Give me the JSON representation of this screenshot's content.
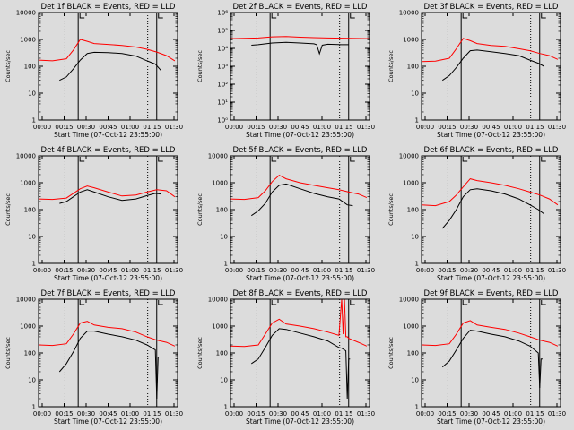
{
  "figure": {
    "background": "#dcdcdc",
    "colors": {
      "events": "#000000",
      "lld": "#ff0000",
      "frame": "#000000"
    }
  },
  "chart_data": [
    {
      "type": "line",
      "title": "Det 1f BLACK = Events, RED = LLD",
      "xlabel": "Start Time (07-Oct-12 23:55:00)",
      "ylabel": "Counts/sec",
      "yscale": "log",
      "ylim": [
        1,
        10000
      ],
      "ytick_labels": [
        "1",
        "10",
        "100",
        "1000",
        "10000"
      ],
      "xlim": [
        0,
        100
      ],
      "xtick_labels": [
        "00:00",
        "00:15",
        "00:30",
        "00:45",
        "01:00",
        "01:15",
        "01:30"
      ],
      "vlines_dotted": [
        19,
        78.5
      ],
      "vlines_solid": [
        28.5,
        85
      ],
      "series": [
        {
          "name": "LLD",
          "color": "#ff0000",
          "x": [
            0,
            10,
            20,
            25,
            30,
            35,
            40,
            50,
            60,
            70,
            78,
            85,
            92,
            98
          ],
          "y": [
            170,
            160,
            190,
            400,
            1000,
            850,
            700,
            650,
            600,
            520,
            430,
            340,
            250,
            160
          ]
        },
        {
          "name": "Events",
          "color": "#000000",
          "x": [
            15,
            20,
            25,
            30,
            35,
            40,
            50,
            60,
            70,
            78,
            84,
            88
          ],
          "y": [
            30,
            40,
            80,
            170,
            300,
            330,
            320,
            300,
            240,
            160,
            120,
            70
          ]
        }
      ]
    },
    {
      "type": "line",
      "title": "Det 2f BLACK = Events, RED = LLD",
      "xlabel": "Start Time (07-Oct-12 23:55:00)",
      "ylabel": "Counts/sec",
      "yscale": "log",
      "ylim": [
        1,
        1000000
      ],
      "ytick_labels": [
        "10⁰",
        "10¹",
        "10²",
        "10³",
        "10⁴",
        "10⁵",
        "10⁶"
      ],
      "xlim": [
        0,
        100
      ],
      "xtick_labels": [
        "00:00",
        "00:15",
        "00:30",
        "00:45",
        "01:00",
        "01:15",
        "01:30"
      ],
      "vlines_dotted": [
        19,
        78.5
      ],
      "vlines_solid": [
        28.5,
        85
      ],
      "series": [
        {
          "name": "LLD",
          "color": "#ff0000",
          "x": [
            0,
            20,
            30,
            40,
            50,
            60,
            70,
            80,
            90,
            100
          ],
          "y": [
            35000,
            38000,
            44000,
            46000,
            42000,
            40000,
            38000,
            37000,
            36000,
            35000
          ]
        },
        {
          "name": "Events",
          "color": "#000000",
          "x": [
            15,
            20,
            30,
            40,
            50,
            60,
            62,
            64,
            66,
            70,
            80,
            85
          ],
          "y": [
            15000,
            16000,
            20000,
            22000,
            20000,
            18000,
            16000,
            5000,
            15000,
            17000,
            16000,
            16000
          ]
        }
      ]
    },
    {
      "type": "line",
      "title": "Det 3f BLACK = Events, RED = LLD",
      "xlabel": "Start Time (07-Oct-12 23:55:00)",
      "ylabel": "Counts/sec",
      "yscale": "log",
      "ylim": [
        1,
        10000
      ],
      "ytick_labels": [
        "1",
        "10",
        "100",
        "1000",
        "10000"
      ],
      "xlim": [
        0,
        100
      ],
      "xtick_labels": [
        "00:00",
        "00:15",
        "00:30",
        "00:45",
        "01:00",
        "01:15",
        "01:30"
      ],
      "vlines_dotted": [
        19,
        78.5
      ],
      "vlines_solid": [
        28.5,
        85
      ],
      "series": [
        {
          "name": "LLD",
          "color": "#ff0000",
          "x": [
            0,
            10,
            20,
            25,
            30,
            35,
            40,
            50,
            60,
            70,
            78,
            85,
            92,
            98
          ],
          "y": [
            150,
            155,
            200,
            450,
            1100,
            900,
            700,
            600,
            550,
            450,
            380,
            300,
            250,
            180
          ]
        },
        {
          "name": "Events",
          "color": "#000000",
          "x": [
            15,
            20,
            25,
            30,
            35,
            40,
            50,
            60,
            70,
            78,
            84,
            88
          ],
          "y": [
            30,
            45,
            90,
            200,
            380,
            400,
            350,
            300,
            250,
            170,
            130,
            100
          ]
        }
      ]
    },
    {
      "type": "line",
      "title": "Det 4f BLACK = Events, RED = LLD",
      "xlabel": "Start Time (07-Oct-12 23:55:00)",
      "ylabel": "Counts/sec",
      "yscale": "log",
      "ylim": [
        1,
        10000
      ],
      "ytick_labels": [
        "1",
        "10",
        "100",
        "1000",
        "10000"
      ],
      "xlim": [
        0,
        100
      ],
      "xtick_labels": [
        "00:00",
        "00:15",
        "00:30",
        "00:45",
        "01:00",
        "01:15",
        "01:30"
      ],
      "vlines_dotted": [
        19,
        78.5
      ],
      "vlines_solid": [
        28.5,
        85
      ],
      "series": [
        {
          "name": "LLD",
          "color": "#ff0000",
          "x": [
            0,
            10,
            20,
            25,
            30,
            35,
            40,
            50,
            60,
            70,
            78,
            85,
            92,
            98
          ],
          "y": [
            250,
            240,
            270,
            400,
            600,
            750,
            650,
            450,
            320,
            350,
            450,
            550,
            500,
            300
          ]
        },
        {
          "name": "Events",
          "color": "#000000",
          "x": [
            15,
            20,
            25,
            30,
            35,
            40,
            50,
            60,
            70,
            78,
            84,
            88
          ],
          "y": [
            170,
            200,
            300,
            450,
            550,
            450,
            300,
            220,
            250,
            330,
            400,
            380
          ]
        }
      ]
    },
    {
      "type": "line",
      "title": "Det 5f BLACK = Events, RED = LLD",
      "xlabel": "Start Time (07-Oct-12 23:55:00)",
      "ylabel": "Counts/sec",
      "yscale": "log",
      "ylim": [
        1,
        10000
      ],
      "ytick_labels": [
        "1",
        "10",
        "100",
        "1000",
        "10000"
      ],
      "xlim": [
        0,
        100
      ],
      "xtick_labels": [
        "00:00",
        "00:15",
        "00:30",
        "00:45",
        "01:00",
        "01:15",
        "01:30"
      ],
      "vlines_dotted": [
        19,
        78.5
      ],
      "vlines_solid": [
        28.5,
        85
      ],
      "series": [
        {
          "name": "LLD",
          "color": "#ff0000",
          "x": [
            0,
            10,
            20,
            25,
            30,
            35,
            40,
            50,
            60,
            70,
            78,
            85,
            92,
            98
          ],
          "y": [
            250,
            240,
            280,
            500,
            1100,
            1900,
            1400,
            1000,
            800,
            650,
            550,
            450,
            380,
            280
          ]
        },
        {
          "name": "Events",
          "color": "#000000",
          "x": [
            15,
            20,
            25,
            30,
            35,
            40,
            50,
            60,
            70,
            78,
            84,
            88
          ],
          "y": [
            60,
            90,
            170,
            450,
            800,
            900,
            600,
            400,
            300,
            250,
            150,
            140
          ]
        }
      ]
    },
    {
      "type": "line",
      "title": "Det 6f BLACK = Events, RED = LLD",
      "xlabel": "Start Time (07-Oct-12 23:55:00)",
      "ylabel": "Counts/sec",
      "yscale": "log",
      "ylim": [
        1,
        10000
      ],
      "ytick_labels": [
        "1",
        "10",
        "100",
        "1000",
        "10000"
      ],
      "xlim": [
        0,
        100
      ],
      "xtick_labels": [
        "00:00",
        "00:15",
        "00:30",
        "00:45",
        "01:00",
        "01:15",
        "01:30"
      ],
      "vlines_dotted": [
        19,
        78.5
      ],
      "vlines_solid": [
        28.5,
        85
      ],
      "series": [
        {
          "name": "LLD",
          "color": "#ff0000",
          "x": [
            0,
            10,
            20,
            25,
            30,
            35,
            40,
            50,
            60,
            70,
            78,
            85,
            92,
            98
          ],
          "y": [
            150,
            140,
            200,
            350,
            700,
            1400,
            1200,
            1000,
            800,
            600,
            450,
            350,
            250,
            150
          ]
        },
        {
          "name": "Events",
          "color": "#000000",
          "x": [
            15,
            20,
            25,
            30,
            35,
            40,
            50,
            60,
            70,
            78,
            84,
            88
          ],
          "y": [
            20,
            40,
            100,
            300,
            550,
            600,
            500,
            380,
            250,
            150,
            100,
            70
          ]
        }
      ]
    },
    {
      "type": "line",
      "title": "Det 7f BLACK = Events, RED = LLD",
      "xlabel": "Start Time (07-Oct-12 23:55:00)",
      "ylabel": "Counts/sec",
      "yscale": "log",
      "ylim": [
        1,
        10000
      ],
      "ytick_labels": [
        "1",
        "10",
        "100",
        "1000",
        "10000"
      ],
      "xlim": [
        0,
        100
      ],
      "xtick_labels": [
        "00:00",
        "00:15",
        "00:30",
        "00:45",
        "01:00",
        "01:15",
        "01:30"
      ],
      "vlines_dotted": [
        19,
        78.5
      ],
      "vlines_solid": [
        28.5,
        85
      ],
      "series": [
        {
          "name": "LLD",
          "color": "#ff0000",
          "x": [
            0,
            10,
            20,
            25,
            30,
            35,
            40,
            50,
            60,
            70,
            78,
            85,
            92,
            98
          ],
          "y": [
            200,
            190,
            220,
            500,
            1300,
            1500,
            1100,
            900,
            800,
            600,
            400,
            300,
            250,
            180
          ]
        },
        {
          "name": "Events",
          "color": "#000000",
          "x": [
            15,
            20,
            25,
            30,
            35,
            40,
            50,
            60,
            70,
            78,
            84,
            85,
            86,
            86.5
          ],
          "y": [
            20,
            40,
            110,
            350,
            650,
            650,
            500,
            400,
            300,
            200,
            130,
            2,
            70,
            70
          ]
        }
      ]
    },
    {
      "type": "line",
      "title": "Det 8f BLACK = Events, RED = LLD",
      "xlabel": "Start Time (07-Oct-12 23:55:00)",
      "ylabel": "Counts/sec",
      "yscale": "log",
      "ylim": [
        1,
        10000
      ],
      "ytick_labels": [
        "1",
        "10",
        "100",
        "1000",
        "10000"
      ],
      "xlim": [
        0,
        100
      ],
      "xtick_labels": [
        "00:00",
        "00:15",
        "00:30",
        "00:45",
        "01:00",
        "01:15",
        "01:30"
      ],
      "vlines_dotted": [
        19,
        78.5
      ],
      "vlines_solid": [
        28.5,
        85
      ],
      "series": [
        {
          "name": "LLD",
          "color": "#ff0000",
          "x": [
            0,
            10,
            20,
            25,
            30,
            35,
            40,
            50,
            60,
            70,
            78,
            80,
            81,
            82,
            83,
            84,
            85,
            92,
            98
          ],
          "y": [
            180,
            175,
            200,
            500,
            1300,
            1800,
            1200,
            1000,
            800,
            600,
            450,
            10000,
            500,
            10000,
            400,
            400,
            350,
            250,
            180
          ]
        },
        {
          "name": "Events",
          "color": "#000000",
          "x": [
            15,
            20,
            25,
            30,
            35,
            40,
            50,
            60,
            70,
            78,
            80,
            83,
            84,
            85,
            86
          ],
          "y": [
            40,
            60,
            160,
            450,
            800,
            750,
            550,
            400,
            280,
            160,
            150,
            120,
            2,
            60,
            60
          ]
        }
      ]
    },
    {
      "type": "line",
      "title": "Det 9f BLACK = Events, RED = LLD",
      "xlabel": "Start Time (07-Oct-12 23:55:00)",
      "ylabel": "Counts/sec",
      "yscale": "log",
      "ylim": [
        1,
        10000
      ],
      "ytick_labels": [
        "1",
        "10",
        "100",
        "1000",
        "10000"
      ],
      "xlim": [
        0,
        100
      ],
      "xtick_labels": [
        "00:00",
        "00:15",
        "00:30",
        "00:45",
        "01:00",
        "01:15",
        "01:30"
      ],
      "vlines_dotted": [
        19,
        78.5
      ],
      "vlines_solid": [
        28.5,
        85
      ],
      "series": [
        {
          "name": "LLD",
          "color": "#ff0000",
          "x": [
            0,
            10,
            20,
            25,
            30,
            35,
            40,
            50,
            60,
            70,
            78,
            85,
            92,
            98
          ],
          "y": [
            200,
            190,
            220,
            500,
            1300,
            1600,
            1100,
            900,
            750,
            550,
            400,
            300,
            250,
            180
          ]
        },
        {
          "name": "Events",
          "color": "#000000",
          "x": [
            15,
            20,
            25,
            30,
            35,
            40,
            50,
            60,
            70,
            78,
            84,
            85,
            86,
            87
          ],
          "y": [
            30,
            50,
            130,
            350,
            700,
            650,
            500,
            400,
            280,
            180,
            100,
            5,
            60,
            60
          ]
        }
      ]
    }
  ]
}
